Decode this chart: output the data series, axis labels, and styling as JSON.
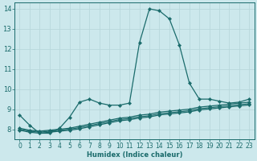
{
  "xlabel": "Humidex (Indice chaleur)",
  "ylabel": "",
  "bg_color": "#cce8ec",
  "grid_color": "#b8d8dc",
  "line_color": "#1a6b6b",
  "xlim_min": -0.5,
  "xlim_max": 23.5,
  "ylim_min": 7.5,
  "ylim_max": 14.3,
  "xticks": [
    0,
    1,
    2,
    3,
    4,
    5,
    6,
    7,
    8,
    9,
    10,
    11,
    12,
    13,
    14,
    15,
    16,
    17,
    18,
    19,
    20,
    21,
    22,
    23
  ],
  "yticks": [
    8,
    9,
    10,
    11,
    12,
    13,
    14
  ],
  "line1_x": [
    0,
    1,
    2,
    3,
    4,
    5,
    6,
    7,
    8,
    9,
    10,
    11,
    12,
    13,
    14,
    15,
    16,
    17,
    18,
    19,
    20,
    21,
    22,
    23
  ],
  "line1_y": [
    8.7,
    8.2,
    7.8,
    7.8,
    8.05,
    8.6,
    9.35,
    9.5,
    9.3,
    9.2,
    9.2,
    9.3,
    12.3,
    14.0,
    13.9,
    13.5,
    12.2,
    10.3,
    9.5,
    9.5,
    9.4,
    9.3,
    9.35,
    9.5
  ],
  "line2_x": [
    0,
    1,
    2,
    3,
    4,
    5,
    6,
    7,
    8,
    9,
    10,
    11,
    12,
    13,
    14,
    15,
    16,
    17,
    18,
    19,
    20,
    21,
    22,
    23
  ],
  "line2_y": [
    8.05,
    7.95,
    7.9,
    7.95,
    8.0,
    8.05,
    8.15,
    8.25,
    8.35,
    8.45,
    8.55,
    8.6,
    8.7,
    8.75,
    8.85,
    8.9,
    8.95,
    9.0,
    9.1,
    9.15,
    9.2,
    9.25,
    9.3,
    9.35
  ],
  "line3_x": [
    0,
    1,
    2,
    3,
    4,
    5,
    6,
    7,
    8,
    9,
    10,
    11,
    12,
    13,
    14,
    15,
    16,
    17,
    18,
    19,
    20,
    21,
    22,
    23
  ],
  "line3_y": [
    8.0,
    7.9,
    7.85,
    7.9,
    7.95,
    8.0,
    8.08,
    8.18,
    8.28,
    8.38,
    8.48,
    8.53,
    8.62,
    8.67,
    8.77,
    8.82,
    8.87,
    8.92,
    9.02,
    9.07,
    9.12,
    9.17,
    9.22,
    9.27
  ],
  "line4_x": [
    0,
    1,
    2,
    3,
    4,
    5,
    6,
    7,
    8,
    9,
    10,
    11,
    12,
    13,
    14,
    15,
    16,
    17,
    18,
    19,
    20,
    21,
    22,
    23
  ],
  "line4_y": [
    7.95,
    7.85,
    7.8,
    7.85,
    7.9,
    7.95,
    8.02,
    8.12,
    8.22,
    8.32,
    8.42,
    8.47,
    8.56,
    8.61,
    8.71,
    8.76,
    8.81,
    8.86,
    8.96,
    9.01,
    9.06,
    9.11,
    9.16,
    9.21
  ],
  "tick_fontsize": 5.5,
  "xlabel_fontsize": 6.0
}
